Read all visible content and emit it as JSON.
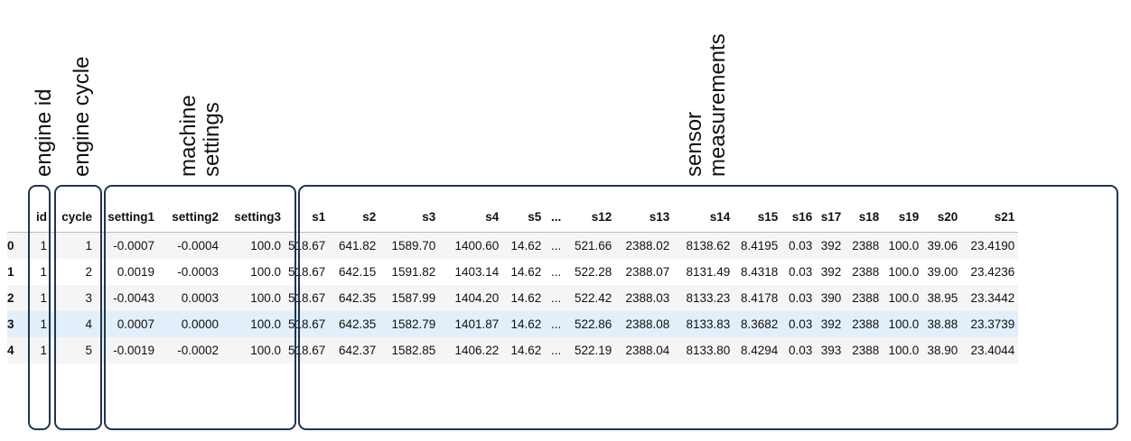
{
  "annotations": {
    "engine_id": [
      "engine id"
    ],
    "engine_cycle": [
      "engine cycle"
    ],
    "machine_settings": [
      "machine",
      "settings"
    ],
    "sensor_measurements": [
      "sensor",
      "measurements"
    ]
  },
  "table": {
    "columns": [
      "",
      "id",
      "cycle",
      "setting1",
      "setting2",
      "setting3",
      "s1",
      "s2",
      "s3",
      "s4",
      "s5",
      "...",
      "s12",
      "s13",
      "s14",
      "s15",
      "s16",
      "s17",
      "s18",
      "s19",
      "s20",
      "s21"
    ],
    "rows": [
      [
        "0",
        "1",
        "1",
        "-0.0007",
        "-0.0004",
        "100.0",
        "518.67",
        "641.82",
        "1589.70",
        "1400.60",
        "14.62",
        "...",
        "521.66",
        "2388.02",
        "8138.62",
        "8.4195",
        "0.03",
        "392",
        "2388",
        "100.0",
        "39.06",
        "23.4190"
      ],
      [
        "1",
        "1",
        "2",
        "0.0019",
        "-0.0003",
        "100.0",
        "518.67",
        "642.15",
        "1591.82",
        "1403.14",
        "14.62",
        "...",
        "522.28",
        "2388.07",
        "8131.49",
        "8.4318",
        "0.03",
        "392",
        "2388",
        "100.0",
        "39.00",
        "23.4236"
      ],
      [
        "2",
        "1",
        "3",
        "-0.0043",
        "0.0003",
        "100.0",
        "518.67",
        "642.35",
        "1587.99",
        "1404.20",
        "14.62",
        "...",
        "522.42",
        "2388.03",
        "8133.23",
        "8.4178",
        "0.03",
        "390",
        "2388",
        "100.0",
        "38.95",
        "23.3442"
      ],
      [
        "3",
        "1",
        "4",
        "0.0007",
        "0.0000",
        "100.0",
        "518.67",
        "642.35",
        "1582.79",
        "1401.87",
        "14.62",
        "...",
        "522.86",
        "2388.08",
        "8133.83",
        "8.3682",
        "0.03",
        "392",
        "2388",
        "100.0",
        "38.88",
        "23.3739"
      ],
      [
        "4",
        "1",
        "5",
        "-0.0019",
        "-0.0002",
        "100.0",
        "518.67",
        "642.37",
        "1582.85",
        "1406.22",
        "14.62",
        "...",
        "522.19",
        "2388.04",
        "8133.80",
        "8.4294",
        "0.03",
        "393",
        "2388",
        "100.0",
        "38.90",
        "23.4044"
      ]
    ],
    "highlighted_row_index": 3
  },
  "colors": {
    "box_border": "#20364d",
    "highlight_row": "#e2eef9",
    "stripe_row": "#f5f5f5"
  }
}
